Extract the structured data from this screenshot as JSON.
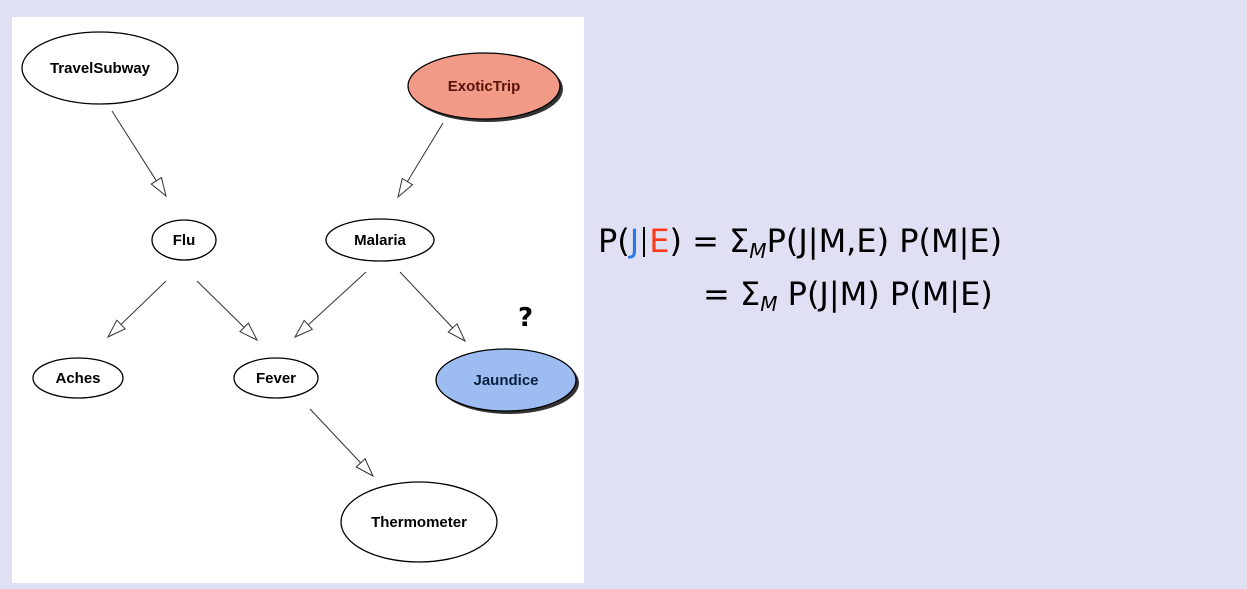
{
  "colors": {
    "background": "#e0e0f4",
    "panel": "#ffffff",
    "query_node_fill": "#9cbcf2",
    "evidence_node_fill": "#f29a88",
    "query_var_color": "#2a78e4",
    "evidence_var_color": "#ff3a1c"
  },
  "diagram": {
    "nodes": [
      {
        "id": "travel_subway",
        "label": "TravelSubway",
        "role": "plain"
      },
      {
        "id": "exotic_trip",
        "label": "ExoticTrip",
        "role": "evidence"
      },
      {
        "id": "flu",
        "label": "Flu",
        "role": "plain"
      },
      {
        "id": "malaria",
        "label": "Malaria",
        "role": "plain"
      },
      {
        "id": "aches",
        "label": "Aches",
        "role": "plain"
      },
      {
        "id": "fever",
        "label": "Fever",
        "role": "plain"
      },
      {
        "id": "jaundice",
        "label": "Jaundice",
        "role": "query"
      },
      {
        "id": "thermometer",
        "label": "Thermometer",
        "role": "plain"
      }
    ],
    "edges": [
      {
        "from": "travel_subway",
        "to": "flu"
      },
      {
        "from": "exotic_trip",
        "to": "malaria"
      },
      {
        "from": "flu",
        "to": "aches"
      },
      {
        "from": "flu",
        "to": "fever"
      },
      {
        "from": "malaria",
        "to": "fever"
      },
      {
        "from": "malaria",
        "to": "jaundice"
      },
      {
        "from": "fever",
        "to": "thermometer"
      }
    ],
    "query_marker": "?"
  },
  "formula": {
    "line1": {
      "lhs_prefix": "P(",
      "query_var": "J",
      "separator": "|",
      "evidence_var": "E",
      "lhs_suffix": ")",
      "equals": "=",
      "sum_symbol": "Σ",
      "sum_index": "M",
      "rhs": "P(J|M,E) P(M|E)"
    },
    "line2": {
      "equals": "=",
      "sum_symbol": "Σ",
      "sum_index": "M",
      "rhs": "P(J|M) P(M|E)"
    }
  }
}
